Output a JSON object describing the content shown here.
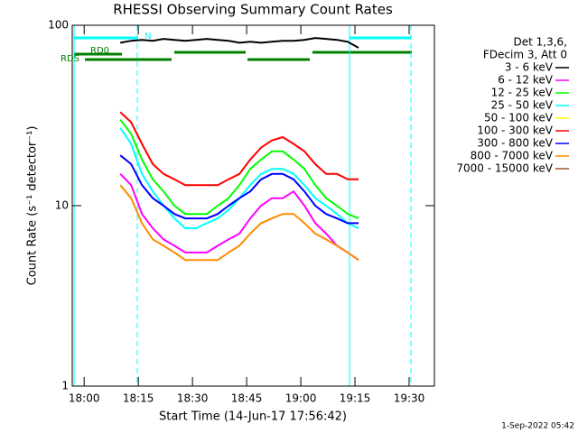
{
  "chart_data": {
    "type": "line",
    "title": "RHESSI Observing Summary Count Rates",
    "xlabel": "Start Time (14-Jun-17 17:56:42)",
    "ylabel": "Count Rate (s⁻¹ detector⁻¹)",
    "legend_header": [
      "Det 1,3,6,",
      "FDecim 3, Att 0"
    ],
    "annotations": [
      "N",
      "RD0",
      "RDS"
    ],
    "footer": "1-Sep-2022 05:42",
    "log_y": true,
    "ylim": [
      1,
      100
    ],
    "yticks": [
      1,
      10,
      100
    ],
    "xlim": [
      -3.3,
      97
    ],
    "xticks": [
      {
        "value": 0,
        "label": "18:00"
      },
      {
        "value": 15,
        "label": "18:15"
      },
      {
        "value": 30,
        "label": "18:30"
      },
      {
        "value": 45,
        "label": "18:45"
      },
      {
        "value": 60,
        "label": "19:00"
      },
      {
        "value": 75,
        "label": "19:15"
      },
      {
        "value": 90,
        "label": "19:30"
      }
    ],
    "x": [
      10,
      13,
      16,
      19,
      22,
      25,
      28,
      31,
      34,
      37,
      40,
      43,
      46,
      49,
      52,
      55,
      58,
      61,
      64,
      67,
      70,
      73,
      76
    ],
    "series": [
      {
        "name": "3 - 6 keV",
        "color": "#000000",
        "values": [
          80,
          82,
          83,
          82,
          84,
          83,
          82,
          83,
          84,
          83,
          82,
          80,
          81,
          80,
          81,
          82,
          82,
          83,
          85,
          84,
          83,
          81,
          75
        ]
      },
      {
        "name": "6 - 12 keV",
        "color": "#ff00ff",
        "values": [
          15,
          13,
          9,
          7.5,
          6.5,
          6,
          5.5,
          5.5,
          5.5,
          6,
          6.5,
          7,
          8.5,
          10,
          11,
          11,
          12,
          10,
          8,
          7,
          6,
          5.5,
          5
        ]
      },
      {
        "name": "12 - 25 keV",
        "color": "#00ff00",
        "values": [
          30,
          25,
          18,
          14,
          12,
          10,
          9,
          9,
          9,
          10,
          11,
          13,
          16,
          18,
          20,
          20,
          18,
          16,
          13,
          11,
          10,
          9,
          8.5
        ]
      },
      {
        "name": "25 - 50 keV",
        "color": "#00ffff",
        "values": [
          27,
          22,
          15,
          12,
          10,
          8.5,
          7.5,
          7.5,
          8,
          8.5,
          9.5,
          11,
          13,
          15,
          16,
          16,
          15,
          13,
          11,
          10,
          9,
          8,
          7.5
        ]
      },
      {
        "name": "50 - 100 keV",
        "color": "#ffff00",
        "values": [
          null,
          null,
          null,
          null,
          null,
          null,
          null,
          null,
          null,
          null,
          null,
          null,
          null,
          null,
          null,
          null,
          null,
          null,
          null,
          null,
          null,
          null,
          null
        ]
      },
      {
        "name": "100 - 300 keV",
        "color": "#ff0000",
        "values": [
          33,
          29,
          22,
          17,
          15,
          14,
          13,
          13,
          13,
          13,
          14,
          15,
          18,
          21,
          23,
          24,
          22,
          20,
          17,
          15,
          15,
          14,
          14
        ]
      },
      {
        "name": "300 - 800 keV",
        "color": "#0000ff",
        "values": [
          19,
          17,
          13,
          11,
          10,
          9,
          8.5,
          8.5,
          8.5,
          9,
          10,
          11,
          12,
          14,
          15,
          15,
          14,
          12,
          10,
          9,
          8.5,
          8,
          8
        ]
      },
      {
        "name": "800 - 7000 keV",
        "color": "#ff8c00",
        "values": [
          13,
          11,
          8,
          6.5,
          6,
          5.5,
          5,
          5,
          5,
          5,
          5.5,
          6,
          7,
          8,
          8.5,
          9,
          9,
          8,
          7,
          6.5,
          6,
          5.5,
          5
        ]
      },
      {
        "name": "7000 - 15000 keV",
        "color": "#a0522d",
        "values": [
          null,
          null,
          null,
          null,
          null,
          null,
          null,
          null,
          null,
          null,
          null,
          null,
          null,
          null,
          null,
          null,
          null,
          null,
          null,
          null,
          null,
          null,
          null
        ]
      }
    ]
  }
}
